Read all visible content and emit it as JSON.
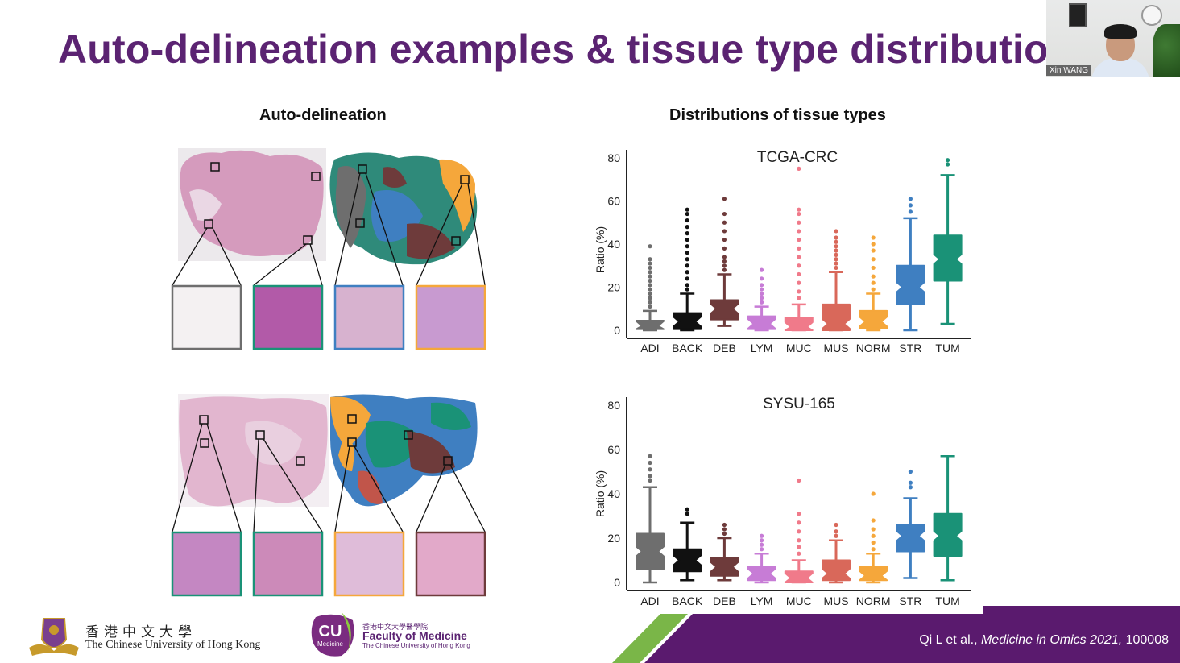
{
  "slide": {
    "title": "Auto-delineation examples & tissue type distribution",
    "left_heading": "Auto-delineation",
    "right_heading": "Distributions of tissue types",
    "citation_prefix": "Qi L et al., ",
    "citation_journal": "Medicine in Omics 2021,",
    "citation_suffix": " 100008"
  },
  "webcam": {
    "participant_name": "Xin WANG"
  },
  "logos": {
    "cuhk_chinese": "香港中文大學",
    "cuhk_english": "The Chinese University of Hong Kong",
    "med_badge_top": "CU",
    "med_badge_bottom": "Medicine",
    "med_chinese": "香港中文大學醫學院",
    "med_english": "Faculty of Medicine",
    "med_sub": "The Chinese University of Hong Kong"
  },
  "colors": {
    "title_purple": "#5b2372",
    "footer_purple": "#5a1a6e",
    "footer_green": "#7ab648",
    "ADI": "#6e6e6e",
    "BACK": "#111111",
    "DEB": "#6e3b3b",
    "LYM": "#c77cd6",
    "MUC": "#f07a8a",
    "MUS": "#d9685a",
    "NORM": "#f5a73b",
    "STR": "#3f7fc1",
    "TUM": "#1a9277"
  },
  "chart_data": [
    {
      "type": "box",
      "title": "TCGA-CRC",
      "ylabel": "Ratio (%)",
      "ylim": [
        0,
        80
      ],
      "yticks": [
        0,
        20,
        40,
        60,
        80
      ],
      "categories": [
        "ADI",
        "BACK",
        "DEB",
        "LYM",
        "MUC",
        "MUS",
        "NORM",
        "STR",
        "TUM"
      ],
      "boxes": [
        {
          "category": "ADI",
          "min": 0,
          "q1": 0.5,
          "median": 2,
          "q3": 4.5,
          "max": 9,
          "outliers": [
            11,
            13,
            15,
            17,
            19,
            21,
            23,
            25,
            27,
            29,
            31,
            33,
            39
          ]
        },
        {
          "category": "BACK",
          "min": 0,
          "q1": 0.5,
          "median": 4,
          "q3": 8,
          "max": 17,
          "outliers": [
            19,
            21,
            24,
            27,
            30,
            33,
            36,
            39,
            42,
            45,
            48,
            51,
            54,
            56
          ]
        },
        {
          "category": "DEB",
          "min": 2,
          "q1": 5,
          "median": 10,
          "q3": 14,
          "max": 26,
          "outliers": [
            28,
            30,
            32,
            34,
            38,
            42,
            46,
            50,
            54,
            61
          ]
        },
        {
          "category": "LYM",
          "min": 0,
          "q1": 0.5,
          "median": 3,
          "q3": 6.5,
          "max": 11,
          "outliers": [
            13,
            15,
            17,
            19,
            21,
            24,
            28
          ]
        },
        {
          "category": "MUC",
          "min": 0,
          "q1": 0,
          "median": 1.5,
          "q3": 6,
          "max": 12,
          "outliers": [
            15,
            18,
            22,
            26,
            30,
            34,
            38,
            42,
            46,
            50,
            54,
            56,
            75
          ]
        },
        {
          "category": "MUS",
          "min": 0,
          "q1": 0,
          "median": 3,
          "q3": 12,
          "max": 27,
          "outliers": [
            29,
            31,
            33,
            35,
            37,
            39,
            41,
            43,
            46
          ]
        },
        {
          "category": "NORM",
          "min": 0,
          "q1": 1,
          "median": 4,
          "q3": 9,
          "max": 17,
          "outliers": [
            19,
            22,
            25,
            29,
            33,
            37,
            40,
            43
          ]
        },
        {
          "category": "STR",
          "min": 0,
          "q1": 12,
          "median": 20,
          "q3": 30,
          "max": 52,
          "outliers": [
            55,
            58,
            61
          ]
        },
        {
          "category": "TUM",
          "min": 3,
          "q1": 23,
          "median": 33,
          "q3": 44,
          "max": 72,
          "outliers": [
            77,
            79
          ]
        }
      ]
    },
    {
      "type": "box",
      "title": "SYSU-165",
      "ylabel": "Ratio (%)",
      "ylim": [
        0,
        80
      ],
      "yticks": [
        0,
        20,
        40,
        60,
        80
      ],
      "categories": [
        "ADI",
        "BACK",
        "DEB",
        "LYM",
        "MUC",
        "MUS",
        "NORM",
        "STR",
        "TUM"
      ],
      "boxes": [
        {
          "category": "ADI",
          "min": 0,
          "q1": 6,
          "median": 14,
          "q3": 22,
          "max": 43,
          "outliers": [
            46,
            48,
            51,
            54,
            57
          ]
        },
        {
          "category": "BACK",
          "min": 1,
          "q1": 5,
          "median": 10,
          "q3": 15,
          "max": 27,
          "outliers": [
            31,
            33
          ]
        },
        {
          "category": "DEB",
          "min": 1,
          "q1": 3,
          "median": 7,
          "q3": 11,
          "max": 20,
          "outliers": [
            22,
            24,
            26
          ]
        },
        {
          "category": "LYM",
          "min": 0,
          "q1": 1,
          "median": 4,
          "q3": 7,
          "max": 13,
          "outliers": [
            15,
            17,
            19,
            21
          ]
        },
        {
          "category": "MUC",
          "min": 0,
          "q1": 0,
          "median": 2,
          "q3": 5,
          "max": 10,
          "outliers": [
            13,
            16,
            19,
            23,
            27,
            31,
            46
          ]
        },
        {
          "category": "MUS",
          "min": 0,
          "q1": 1,
          "median": 4,
          "q3": 10,
          "max": 19,
          "outliers": [
            21,
            23,
            26
          ]
        },
        {
          "category": "NORM",
          "min": 0,
          "q1": 1,
          "median": 3,
          "q3": 7,
          "max": 13,
          "outliers": [
            15,
            18,
            21,
            24,
            28,
            40
          ]
        },
        {
          "category": "STR",
          "min": 2,
          "q1": 14,
          "median": 21,
          "q3": 26,
          "max": 38,
          "outliers": [
            43,
            45,
            50
          ]
        },
        {
          "category": "TUM",
          "min": 1,
          "q1": 12,
          "median": 21,
          "q3": 31,
          "max": 57,
          "outliers": []
        }
      ]
    }
  ],
  "delineation_examples": [
    {
      "inset_colors": [
        "#6e6e6e",
        "#1a9277",
        "#3f7fc1",
        "#f5a73b"
      ]
    },
    {
      "inset_colors": [
        "#1a9277",
        "#1a9277",
        "#f5a73b",
        "#6e3b3b"
      ]
    }
  ]
}
